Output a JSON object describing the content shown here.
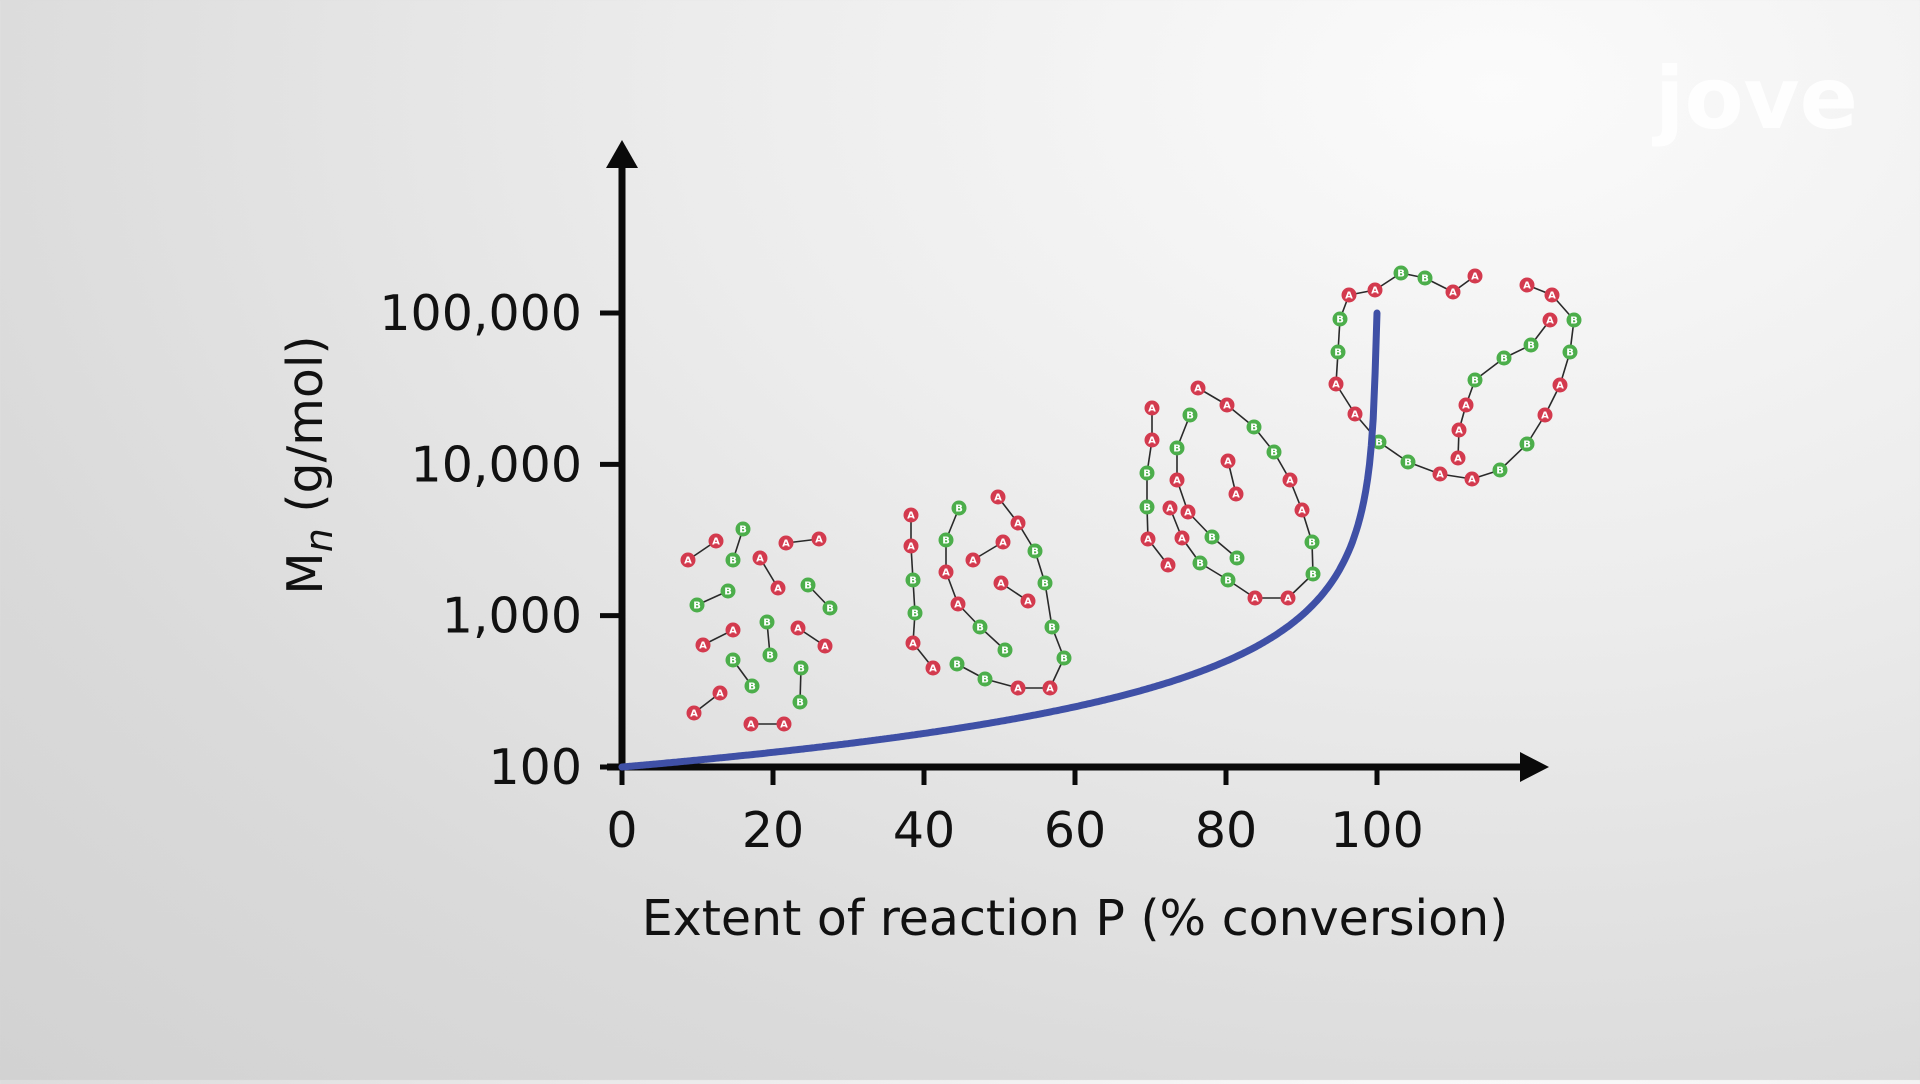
{
  "logo": {
    "text": "jove"
  },
  "colors": {
    "axis": "#0a0a0a",
    "curve": "#3f50a6",
    "monomer_a": "#d33a4e",
    "monomer_b": "#4cae4b",
    "bond": "#2a2a2a"
  },
  "chart_data": {
    "type": "line",
    "x": [
      0,
      20,
      40,
      60,
      80,
      90,
      95,
      98,
      99,
      100
    ],
    "series": [
      {
        "values": [
          100,
          125,
          167,
          250,
          500,
          1000,
          2000,
          5000,
          10000,
          100000
        ]
      }
    ],
    "xlabel": "Extent of reaction P (% conversion)",
    "ylabel_main": "M",
    "ylabel_sub": "n",
    "ylabel_rest": " (g/mol)",
    "xticks": [
      "0",
      "20",
      "40",
      "60",
      "80",
      "100"
    ],
    "yticks": [
      "100",
      "1,000",
      "10,000",
      "100,000"
    ],
    "xlim": [
      0,
      100
    ],
    "ylim": [
      100,
      100000
    ],
    "yscale": "log",
    "grid": false,
    "monomer_labels": [
      "A",
      "B"
    ]
  }
}
